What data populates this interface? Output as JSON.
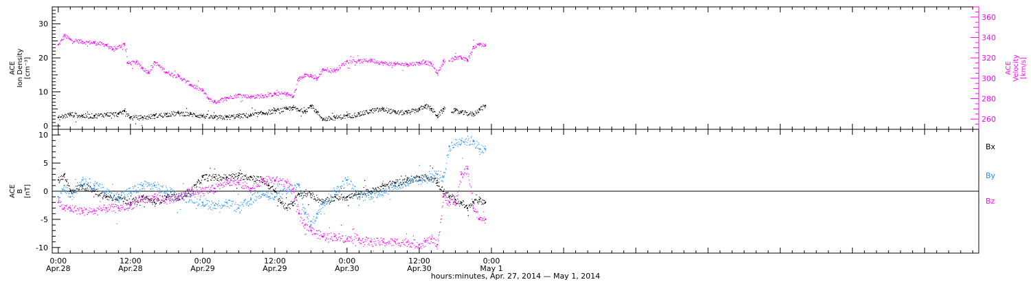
{
  "chart_data": [
    {
      "type": "scatter",
      "panel": "top",
      "x_range_hours": [
        -1,
        153
      ],
      "xlabel": "hours:minutes, Apr. 27, 2014 — May  1, 2014",
      "x_ticks": [
        {
          "hour": 0,
          "time": "0:00",
          "date": "Apr.28"
        },
        {
          "hour": 12,
          "time": "12:00",
          "date": "Apr.28"
        },
        {
          "hour": 24,
          "time": "0:00",
          "date": "Apr.29"
        },
        {
          "hour": 36,
          "time": "12:00",
          "date": "Apr.29"
        },
        {
          "hour": 48,
          "time": "0:00",
          "date": "Apr.30"
        },
        {
          "hour": 60,
          "time": "12:00",
          "date": "Apr.30"
        },
        {
          "hour": 72,
          "time": "0:00",
          "date": "May  1"
        }
      ],
      "left_axis": {
        "label_lines": [
          "ACE",
          "Ion Density",
          "[cm⁻³]"
        ],
        "range": [
          -1,
          35
        ],
        "ticks": [
          0,
          10,
          20,
          30
        ],
        "color": "#000000"
      },
      "right_axis": {
        "label_lines": [
          "ACE",
          "Velocity",
          "[km/s]"
        ],
        "range": [
          250,
          370
        ],
        "ticks": [
          260,
          280,
          300,
          320,
          340,
          360
        ],
        "color": "#ff00ff"
      },
      "series": [
        {
          "key": "density",
          "axis": "left",
          "color": "#000000",
          "points": [
            [
              0,
              2.5
            ],
            [
              2,
              3.5
            ],
            [
              4,
              3
            ],
            [
              6,
              3
            ],
            [
              8,
              3.5
            ],
            [
              10,
              3.5
            ],
            [
              11,
              4.5
            ],
            [
              12,
              2.5
            ],
            [
              14,
              2.5
            ],
            [
              16,
              3
            ],
            [
              18,
              3.5
            ],
            [
              20,
              3.8
            ],
            [
              22,
              3.5
            ],
            [
              24,
              3
            ],
            [
              26,
              2.5
            ],
            [
              28,
              2.6
            ],
            [
              30,
              3
            ],
            [
              32,
              3.2
            ],
            [
              34,
              3.8
            ],
            [
              36,
              4.5
            ],
            [
              38,
              5
            ],
            [
              39,
              5.5
            ],
            [
              40,
              4.5
            ],
            [
              41,
              4.5
            ],
            [
              42,
              6
            ],
            [
              43,
              4
            ],
            [
              44,
              2
            ],
            [
              46,
              2.5
            ],
            [
              48,
              3
            ],
            [
              50,
              3.5
            ],
            [
              52,
              4.5
            ],
            [
              54,
              5
            ],
            [
              56,
              4
            ],
            [
              58,
              4
            ],
            [
              60,
              5
            ],
            [
              61,
              6
            ],
            [
              62,
              5
            ],
            [
              63,
              3
            ],
            [
              64,
              5
            ],
            [
              66,
              4.5
            ],
            [
              67,
              4
            ],
            [
              69,
              3.5
            ],
            [
              70,
              5
            ],
            [
              71,
              6
            ]
          ]
        },
        {
          "key": "velocity",
          "axis": "right",
          "color": "#ff00ff",
          "points": [
            [
              0,
              333
            ],
            [
              1,
              342
            ],
            [
              2,
              338
            ],
            [
              4,
              336
            ],
            [
              6,
              335
            ],
            [
              8,
              333
            ],
            [
              9,
              328
            ],
            [
              11,
              334
            ],
            [
              11.5,
              315
            ],
            [
              13,
              316
            ],
            [
              14,
              310
            ],
            [
              15,
              306
            ],
            [
              16,
              316
            ],
            [
              18,
              306
            ],
            [
              20,
              302
            ],
            [
              22,
              294
            ],
            [
              24,
              288
            ],
            [
              25,
              280
            ],
            [
              26,
              277
            ],
            [
              28,
              281
            ],
            [
              30,
              284
            ],
            [
              32,
              282
            ],
            [
              34,
              283
            ],
            [
              36,
              285
            ],
            [
              38,
              285
            ],
            [
              39,
              282
            ],
            [
              40,
              300
            ],
            [
              41,
              304
            ],
            [
              42,
              302
            ],
            [
              43,
              300
            ],
            [
              44,
              309
            ],
            [
              46,
              308
            ],
            [
              48,
              317
            ],
            [
              50,
              317
            ],
            [
              52,
              318
            ],
            [
              54,
              315
            ],
            [
              56,
              314
            ],
            [
              58,
              314
            ],
            [
              60,
              315
            ],
            [
              61,
              316
            ],
            [
              62,
              314
            ],
            [
              63,
              305
            ],
            [
              64,
              317
            ],
            [
              65,
              317
            ],
            [
              66,
              321
            ],
            [
              67,
              320
            ],
            [
              68,
              318
            ],
            [
              69,
              331
            ],
            [
              70,
              334
            ],
            [
              71,
              332
            ]
          ]
        }
      ]
    },
    {
      "type": "scatter",
      "panel": "bottom",
      "x_range_hours": [
        -1,
        153
      ],
      "left_axis": {
        "label_lines": [
          "ACE",
          "B",
          "[nT]"
        ],
        "range": [
          -11,
          11
        ],
        "ticks": [
          -10,
          -5,
          0,
          5,
          10
        ],
        "color": "#000000"
      },
      "legend_placement": "right",
      "series": [
        {
          "key": "bx",
          "name": "Bx",
          "color": "#000000",
          "points": [
            [
              0,
              2
            ],
            [
              1,
              3
            ],
            [
              2,
              0
            ],
            [
              4,
              1
            ],
            [
              6,
              0
            ],
            [
              8,
              -1
            ],
            [
              10,
              -1
            ],
            [
              12,
              -2
            ],
            [
              14,
              -1
            ],
            [
              16,
              -2
            ],
            [
              18,
              -1
            ],
            [
              20,
              -1
            ],
            [
              22,
              0
            ],
            [
              24,
              2.5
            ],
            [
              26,
              2.5
            ],
            [
              28,
              2.5
            ],
            [
              30,
              2.8
            ],
            [
              32,
              2.5
            ],
            [
              34,
              2
            ],
            [
              35,
              1
            ],
            [
              36,
              0
            ],
            [
              37,
              -2
            ],
            [
              38,
              -3
            ],
            [
              39,
              -2
            ],
            [
              40,
              -0.5
            ],
            [
              42,
              -0.5
            ],
            [
              44,
              -2
            ],
            [
              46,
              -1
            ],
            [
              48,
              -1
            ],
            [
              50,
              -0.5
            ],
            [
              52,
              0
            ],
            [
              54,
              1
            ],
            [
              56,
              1.5
            ],
            [
              58,
              2
            ],
            [
              60,
              2.5
            ],
            [
              62,
              2.5
            ],
            [
              63,
              1.5
            ],
            [
              64,
              0
            ],
            [
              65,
              -1
            ],
            [
              66,
              -1.5
            ],
            [
              67,
              -2
            ],
            [
              68,
              -3
            ],
            [
              69,
              -2
            ],
            [
              70,
              -1.5
            ],
            [
              71,
              -2
            ]
          ]
        },
        {
          "key": "by",
          "name": "By",
          "color": "#1e90ff",
          "points": [
            [
              0,
              -1
            ],
            [
              1,
              1
            ],
            [
              2,
              -1
            ],
            [
              4,
              2
            ],
            [
              6,
              1
            ],
            [
              8,
              0
            ],
            [
              10,
              -1
            ],
            [
              12,
              0
            ],
            [
              14,
              1
            ],
            [
              16,
              1
            ],
            [
              18,
              0
            ],
            [
              20,
              -1
            ],
            [
              22,
              -1
            ],
            [
              24,
              -2
            ],
            [
              26,
              -2.5
            ],
            [
              28,
              -2
            ],
            [
              30,
              -3
            ],
            [
              32,
              -1.5
            ],
            [
              34,
              0
            ],
            [
              35,
              -1
            ],
            [
              36,
              -1
            ],
            [
              38,
              0
            ],
            [
              40,
              1
            ],
            [
              41,
              -4
            ],
            [
              42,
              -6
            ],
            [
              43,
              -4
            ],
            [
              44,
              -2
            ],
            [
              46,
              0
            ],
            [
              48,
              2
            ],
            [
              50,
              -1
            ],
            [
              52,
              -0.5
            ],
            [
              54,
              0
            ],
            [
              56,
              1
            ],
            [
              58,
              1.5
            ],
            [
              60,
              2
            ],
            [
              62,
              2.5
            ],
            [
              63,
              3
            ],
            [
              64,
              2.5
            ],
            [
              65,
              8
            ],
            [
              67,
              9
            ],
            [
              69,
              9
            ],
            [
              70,
              7.5
            ],
            [
              71,
              7.5
            ]
          ]
        },
        {
          "key": "bz",
          "name": "Bz",
          "color": "#ff00ff",
          "points": [
            [
              0,
              -2
            ],
            [
              1,
              -3
            ],
            [
              2,
              -3
            ],
            [
              4,
              -3.5
            ],
            [
              6,
              -3.5
            ],
            [
              8,
              -3
            ],
            [
              10,
              -3
            ],
            [
              12,
              -2.5
            ],
            [
              14,
              -1.5
            ],
            [
              16,
              -1
            ],
            [
              18,
              -1.5
            ],
            [
              20,
              -1
            ],
            [
              22,
              0
            ],
            [
              24,
              0
            ],
            [
              26,
              0.5
            ],
            [
              28,
              2
            ],
            [
              30,
              1.5
            ],
            [
              32,
              0.5
            ],
            [
              34,
              2
            ],
            [
              36,
              2
            ],
            [
              38,
              1.5
            ],
            [
              39,
              0
            ],
            [
              40,
              -4
            ],
            [
              41,
              -6
            ],
            [
              42,
              -7
            ],
            [
              44,
              -8
            ],
            [
              46,
              -8
            ],
            [
              48,
              -8.5
            ],
            [
              50,
              -8.5
            ],
            [
              52,
              -9
            ],
            [
              54,
              -9
            ],
            [
              56,
              -9
            ],
            [
              58,
              -9
            ],
            [
              60,
              -9.5
            ],
            [
              61,
              -9
            ],
            [
              62,
              -8.5
            ],
            [
              63,
              -9.5
            ],
            [
              64,
              -1
            ],
            [
              65,
              -2
            ],
            [
              66,
              -2
            ],
            [
              67,
              3
            ],
            [
              68,
              4
            ],
            [
              69,
              -3
            ],
            [
              70,
              -5
            ],
            [
              71,
              -5
            ]
          ]
        }
      ]
    }
  ]
}
